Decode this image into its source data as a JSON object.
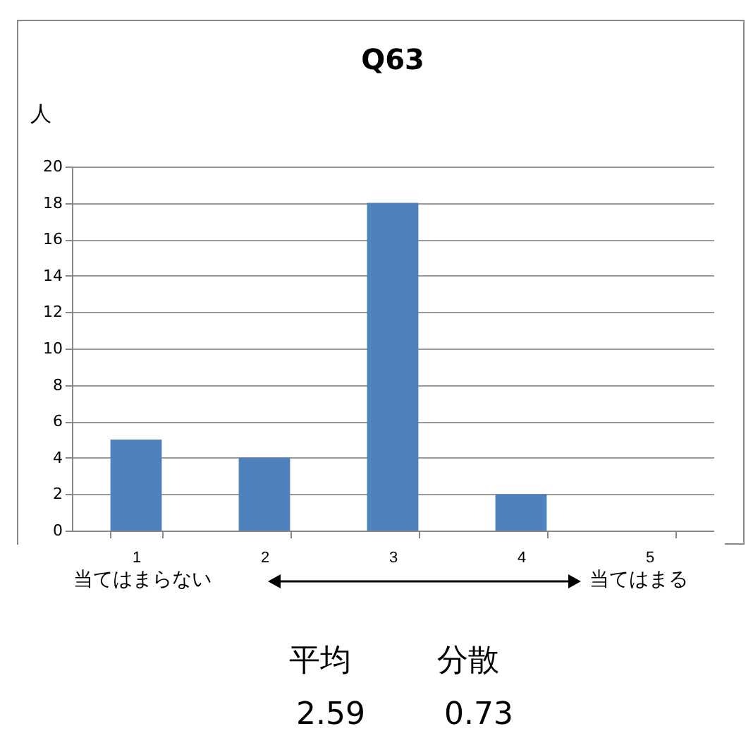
{
  "chart_data": {
    "type": "bar",
    "title": "Q63",
    "ylabel": "人",
    "categories": [
      "1",
      "2",
      "3",
      "4",
      "5"
    ],
    "values": [
      5,
      4,
      18,
      2,
      0
    ],
    "color": "#4f81bd",
    "ylim": [
      0,
      20
    ],
    "yticks": [
      0,
      2,
      4,
      6,
      8,
      10,
      12,
      14,
      16,
      18,
      20
    ],
    "grid": "y",
    "annotations": [
      "当てはまらない",
      "当てはまる",
      "平均",
      "分散",
      "2.59",
      "0.73"
    ]
  }
}
